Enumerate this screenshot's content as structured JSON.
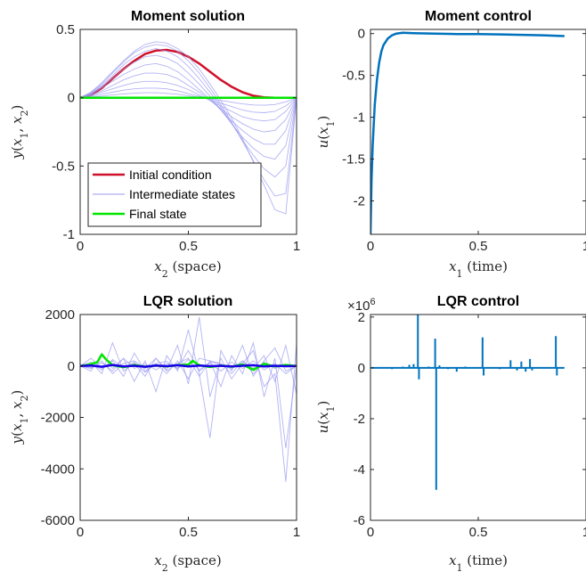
{
  "chart_data": [
    {
      "id": "moment-solution",
      "type": "line",
      "title": "Moment solution",
      "xlabel": "x_2 (space)",
      "ylabel": "y(x_1, x_2)",
      "xlim": [
        0,
        1
      ],
      "ylim": [
        -1,
        0.5
      ],
      "xticks": [
        0,
        0.5,
        1
      ],
      "xtick_labels": [
        "0",
        "0.5",
        "1"
      ],
      "yticks": [
        -1,
        -0.5,
        0,
        0.5
      ],
      "ytick_labels": [
        "-1",
        "-0.5",
        "0",
        "0.5"
      ],
      "legend": {
        "placement": "bottom-left",
        "entries": [
          "Initial condition",
          "Intermediate states",
          "Final state"
        ]
      },
      "series": [
        {
          "name": "Initial condition",
          "color": "#d0102a",
          "x": [
            0,
            0.05,
            0.1,
            0.15,
            0.2,
            0.25,
            0.3,
            0.35,
            0.4,
            0.45,
            0.5,
            0.55,
            0.6,
            0.65,
            0.7,
            0.75,
            0.8,
            0.85,
            0.9,
            0.95,
            1
          ],
          "y": [
            0,
            0.02,
            0.07,
            0.14,
            0.21,
            0.27,
            0.32,
            0.345,
            0.35,
            0.335,
            0.3,
            0.25,
            0.19,
            0.13,
            0.08,
            0.04,
            0.015,
            0.003,
            0,
            0,
            0
          ]
        },
        {
          "name": "Intermediate states",
          "color": "#9a9af0",
          "x": [
            0,
            0.05,
            0.1,
            0.15,
            0.2,
            0.25,
            0.3,
            0.35,
            0.4,
            0.45,
            0.5,
            0.55,
            0.6,
            0.65,
            0.7,
            0.75,
            0.8,
            0.85,
            0.9,
            0.95,
            1
          ],
          "curves": [
            [
              0,
              0.04,
              0.11,
              0.19,
              0.27,
              0.34,
              0.39,
              0.41,
              0.4,
              0.36,
              0.3,
              0.21,
              0.1,
              -0.02,
              -0.15,
              -0.3,
              -0.47,
              -0.64,
              -0.82,
              -0.85,
              0
            ],
            [
              0,
              0.04,
              0.1,
              0.18,
              0.26,
              0.33,
              0.37,
              0.39,
              0.38,
              0.34,
              0.27,
              0.18,
              0.07,
              -0.05,
              -0.18,
              -0.32,
              -0.46,
              -0.6,
              -0.72,
              -0.7,
              0
            ],
            [
              0,
              0.035,
              0.09,
              0.16,
              0.24,
              0.3,
              0.34,
              0.36,
              0.34,
              0.3,
              0.23,
              0.14,
              0.04,
              -0.07,
              -0.19,
              -0.31,
              -0.42,
              -0.52,
              -0.58,
              -0.5,
              0
            ],
            [
              0,
              0.03,
              0.08,
              0.14,
              0.21,
              0.26,
              0.3,
              0.31,
              0.29,
              0.25,
              0.18,
              0.1,
              0.01,
              -0.09,
              -0.19,
              -0.29,
              -0.37,
              -0.43,
              -0.45,
              -0.35,
              0
            ],
            [
              0,
              0.025,
              0.07,
              0.12,
              0.17,
              0.21,
              0.24,
              0.25,
              0.23,
              0.19,
              0.13,
              0.06,
              -0.01,
              -0.09,
              -0.17,
              -0.24,
              -0.3,
              -0.34,
              -0.34,
              -0.24,
              0
            ],
            [
              0,
              0.02,
              0.05,
              0.09,
              0.13,
              0.16,
              0.18,
              0.18,
              0.17,
              0.14,
              0.09,
              0.04,
              -0.02,
              -0.08,
              -0.14,
              -0.19,
              -0.23,
              -0.25,
              -0.24,
              -0.16,
              0
            ],
            [
              0,
              0.015,
              0.04,
              0.065,
              0.09,
              0.11,
              0.12,
              0.12,
              0.11,
              0.09,
              0.06,
              0.02,
              -0.02,
              -0.06,
              -0.1,
              -0.14,
              -0.16,
              -0.17,
              -0.16,
              -0.1,
              0
            ],
            [
              0,
              0.01,
              0.025,
              0.04,
              0.055,
              0.065,
              0.07,
              0.07,
              0.065,
              0.05,
              0.03,
              0.01,
              -0.015,
              -0.04,
              -0.065,
              -0.09,
              -0.105,
              -0.11,
              -0.1,
              -0.06,
              0
            ],
            [
              0,
              0.005,
              0.012,
              0.02,
              0.028,
              0.033,
              0.036,
              0.036,
              0.032,
              0.025,
              0.015,
              0.004,
              -0.008,
              -0.02,
              -0.033,
              -0.045,
              -0.053,
              -0.055,
              -0.05,
              -0.03,
              0
            ]
          ]
        },
        {
          "name": "Final state",
          "color": "#00e600",
          "x": [
            0,
            1
          ],
          "y": [
            0,
            0
          ]
        }
      ]
    },
    {
      "id": "moment-control",
      "type": "line",
      "title": "Moment control",
      "xlabel": "x_1 (time)",
      "ylabel": "u(x_1)",
      "xlim": [
        0,
        1
      ],
      "ylim": [
        -2.4,
        0.05
      ],
      "xticks": [
        0,
        0.5,
        1
      ],
      "xtick_labels": [
        "0",
        "0.5",
        "1"
      ],
      "yticks": [
        -2,
        -1.5,
        -1,
        -0.5,
        0
      ],
      "ytick_labels": [
        "-2",
        "-1.5",
        "-1",
        "-0.5",
        "0"
      ],
      "series": [
        {
          "name": "",
          "color": "#0072bd",
          "x": [
            0,
            0.005,
            0.01,
            0.02,
            0.03,
            0.04,
            0.05,
            0.06,
            0.08,
            0.1,
            0.12,
            0.15,
            0.2,
            0.3,
            0.4,
            0.5,
            0.6,
            0.7,
            0.8,
            0.9
          ],
          "y": [
            -2.4,
            -1.75,
            -1.35,
            -0.85,
            -0.55,
            -0.35,
            -0.22,
            -0.14,
            -0.06,
            -0.02,
            0,
            0.01,
            0.005,
            0,
            -0.005,
            -0.005,
            -0.01,
            -0.015,
            -0.02,
            -0.03
          ]
        }
      ]
    },
    {
      "id": "lqr-solution",
      "type": "line",
      "title": "LQR solution",
      "xlabel": "x_2 (space)",
      "ylabel": "y(x_1, x_2)",
      "xlim": [
        0,
        1
      ],
      "ylim": [
        -6000,
        2000
      ],
      "xticks": [
        0,
        0.5,
        1
      ],
      "xtick_labels": [
        "0",
        "0.5",
        "1"
      ],
      "yticks": [
        -6000,
        -4000,
        -2000,
        0,
        2000
      ],
      "ytick_labels": [
        "-6000",
        "-4000",
        "-2000",
        "0",
        "2000"
      ],
      "series": [
        {
          "name": "Intermediate states",
          "color": "#9a9af0",
          "x": [
            0,
            0.05,
            0.1,
            0.15,
            0.2,
            0.25,
            0.3,
            0.35,
            0.4,
            0.45,
            0.5,
            0.55,
            0.6,
            0.65,
            0.7,
            0.75,
            0.8,
            0.85,
            0.9,
            0.95,
            1
          ],
          "curves": [
            [
              0,
              150,
              -300,
              900,
              -200,
              100,
              -400,
              300,
              -150,
              800,
              -700,
              1900,
              -1200,
              300,
              -500,
              100,
              600,
              -800,
              -300,
              -4500,
              900
            ],
            [
              0,
              -200,
              500,
              -100,
              300,
              -600,
              200,
              -1000,
              400,
              -200,
              1400,
              -300,
              -2800,
              600,
              -200,
              800,
              -400,
              200,
              700,
              -200,
              0
            ],
            [
              0,
              300,
              -100,
              200,
              -400,
              500,
              -200,
              100,
              -300,
              200,
              -500,
              300,
              200,
              -800,
              400,
              -300,
              900,
              -1200,
              300,
              -3200,
              0
            ],
            [
              0,
              -100,
              200,
              -300,
              100,
              200,
              -100,
              300,
              -200,
              100,
              300,
              -400,
              200,
              100,
              -300,
              200,
              -100,
              400,
              -600,
              800,
              -1100
            ],
            [
              0,
              80,
              -150,
              250,
              -80,
              150,
              -250,
              100,
              180,
              -120,
              250,
              -150,
              100,
              -200,
              150,
              -100,
              200,
              -150,
              100,
              -300,
              0
            ],
            [
              0,
              -60,
              120,
              -200,
              300,
              -100,
              80,
              -150,
              100,
              -80,
              600,
              -200,
              150,
              80,
              -120,
              200,
              -300,
              150,
              -100,
              50,
              0
            ]
          ]
        },
        {
          "name": "Final state",
          "color": "#00e600",
          "x": [
            0,
            0.04,
            0.08,
            0.1,
            0.12,
            0.15,
            0.2,
            0.25,
            0.3,
            0.35,
            0.4,
            0.45,
            0.5,
            0.52,
            0.55,
            0.6,
            0.65,
            0.7,
            0.75,
            0.8,
            0.85,
            0.9,
            0.95,
            1
          ],
          "y": [
            0,
            50,
            150,
            450,
            250,
            30,
            -50,
            40,
            -30,
            20,
            -20,
            30,
            50,
            200,
            30,
            -40,
            20,
            -30,
            60,
            -150,
            80,
            -20,
            40,
            0
          ]
        },
        {
          "name": "",
          "color": "#1a00e6",
          "x": [
            0,
            0.05,
            0.1,
            0.15,
            0.2,
            0.25,
            0.3,
            0.35,
            0.4,
            0.45,
            0.5,
            0.55,
            0.6,
            0.65,
            0.7,
            0.75,
            0.8,
            0.85,
            0.9,
            0.95,
            1
          ],
          "y": [
            0,
            20,
            -30,
            40,
            -20,
            10,
            -30,
            20,
            -10,
            30,
            -20,
            20,
            -10,
            10,
            -20,
            10,
            30,
            -20,
            10,
            -10,
            0
          ]
        }
      ]
    },
    {
      "id": "lqr-control",
      "type": "line",
      "title": "LQR control",
      "xlabel": "x_1 (time)",
      "ylabel": "u(x_1)",
      "scale_label": "×10^6",
      "xlim": [
        0,
        1
      ],
      "ylim": [
        -6,
        2.1
      ],
      "xticks": [
        0,
        0.5,
        1
      ],
      "xtick_labels": [
        "0",
        "0.5",
        "1"
      ],
      "yticks": [
        -6,
        -4,
        -2,
        0,
        2
      ],
      "ytick_labels": [
        "-6",
        "-4",
        "-2",
        "0",
        "2"
      ],
      "series": [
        {
          "name": "",
          "color": "#0072bd",
          "baseline_x": [
            0,
            0.9
          ],
          "spikes": [
            {
              "x": 0.1,
              "y": -0.05
            },
            {
              "x": 0.15,
              "y": 0.05
            },
            {
              "x": 0.18,
              "y": 0.12
            },
            {
              "x": 0.2,
              "y": 0.15
            },
            {
              "x": 0.22,
              "y": 2.1
            },
            {
              "x": 0.225,
              "y": -0.45
            },
            {
              "x": 0.27,
              "y": 0.05
            },
            {
              "x": 0.3,
              "y": 1.15
            },
            {
              "x": 0.305,
              "y": -4.8
            },
            {
              "x": 0.32,
              "y": 0.1
            },
            {
              "x": 0.36,
              "y": -0.05
            },
            {
              "x": 0.4,
              "y": -0.15
            },
            {
              "x": 0.44,
              "y": 0.05
            },
            {
              "x": 0.52,
              "y": 1.2
            },
            {
              "x": 0.525,
              "y": -0.3
            },
            {
              "x": 0.6,
              "y": -0.05
            },
            {
              "x": 0.65,
              "y": 0.3
            },
            {
              "x": 0.68,
              "y": -0.1
            },
            {
              "x": 0.7,
              "y": 0.25
            },
            {
              "x": 0.72,
              "y": -0.15
            },
            {
              "x": 0.74,
              "y": 0.35
            },
            {
              "x": 0.75,
              "y": -0.1
            },
            {
              "x": 0.86,
              "y": 1.25
            },
            {
              "x": 0.865,
              "y": -0.3
            }
          ]
        }
      ]
    }
  ]
}
